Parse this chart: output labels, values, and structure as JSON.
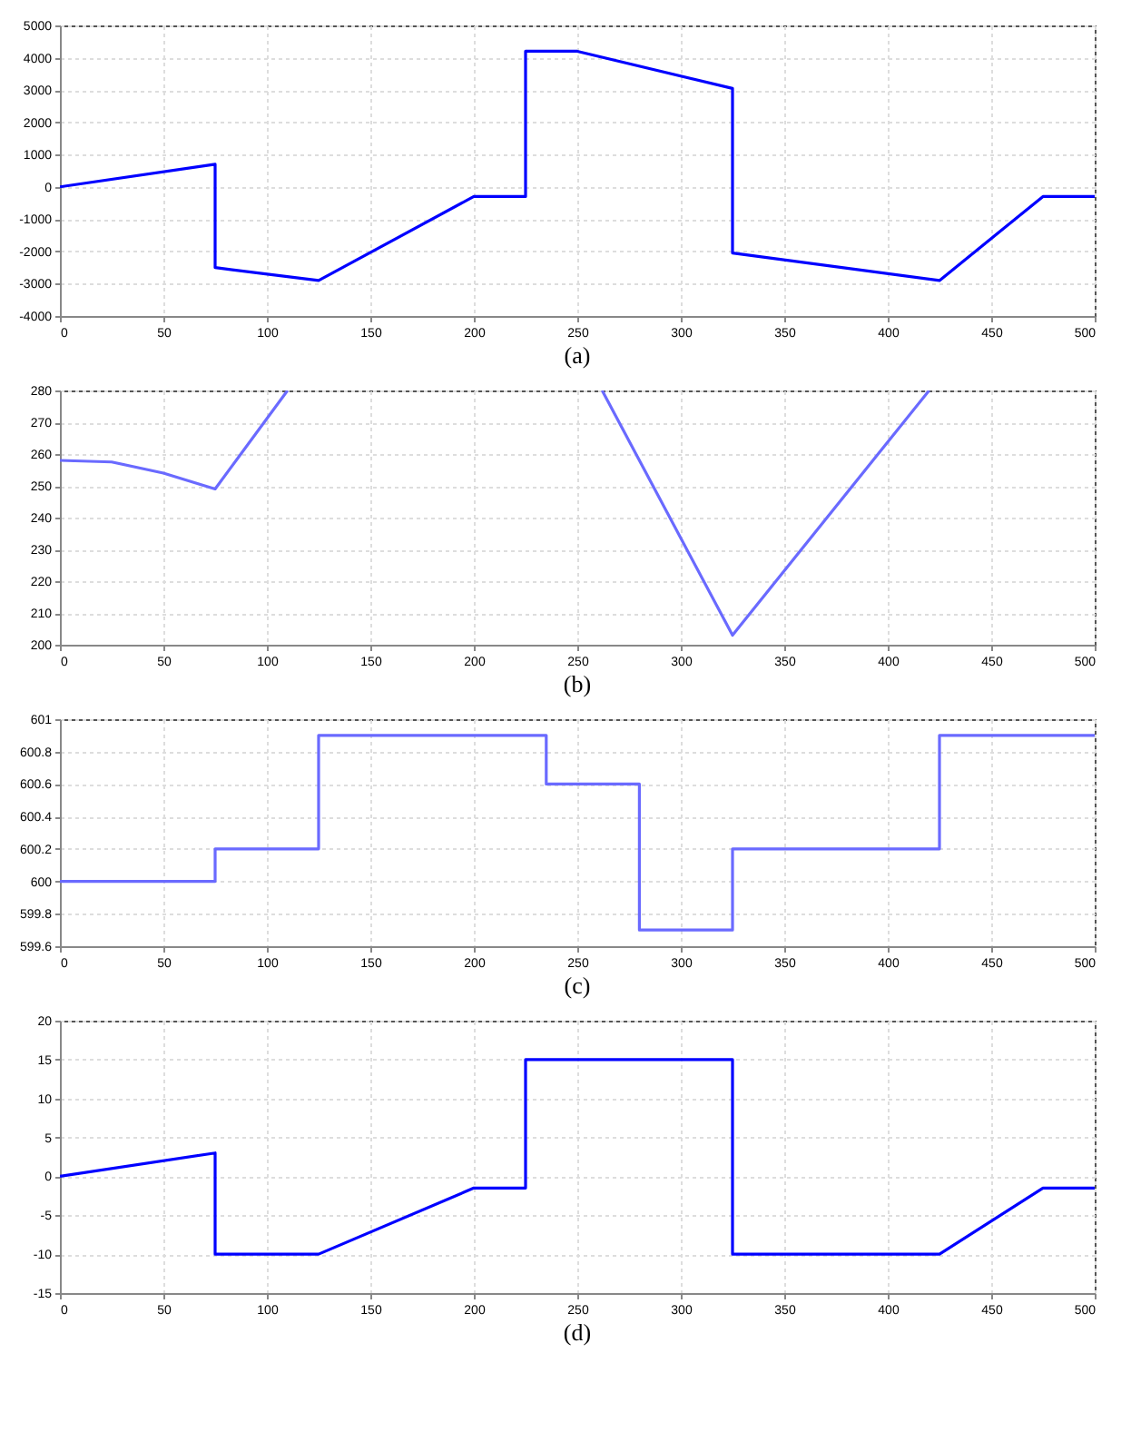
{
  "chart_data": [
    {
      "type": "line",
      "title": "(a)",
      "x": [
        0,
        75,
        75,
        125,
        200,
        225,
        225,
        250,
        325,
        325,
        425,
        475,
        500
      ],
      "values": [
        0,
        700,
        -2500,
        -2900,
        -300,
        -300,
        4200,
        4200,
        3050,
        -2050,
        -2900,
        -300,
        -300
      ],
      "color": "#0000ff",
      "xlim": [
        0,
        500
      ],
      "xticks": [
        0,
        50,
        100,
        150,
        200,
        250,
        300,
        350,
        400,
        450,
        500
      ],
      "ylim": [
        -4000,
        5000
      ],
      "yticks": [
        -4000,
        -3000,
        -2000,
        -1000,
        0,
        1000,
        2000,
        3000,
        4000,
        5000
      ],
      "grid": true
    },
    {
      "type": "line",
      "title": "(b)",
      "x": [
        0,
        25,
        50,
        75,
        110,
        186,
        262,
        325,
        420
      ],
      "values": [
        258,
        257.5,
        254,
        249,
        280,
        null,
        280,
        203,
        280
      ],
      "color": "#6a6aff",
      "xlim": [
        0,
        500
      ],
      "xticks": [
        0,
        50,
        100,
        150,
        200,
        250,
        300,
        350,
        400,
        450,
        500
      ],
      "ylim": [
        200,
        280
      ],
      "yticks": [
        200,
        210,
        220,
        230,
        240,
        250,
        260,
        270,
        280
      ],
      "grid": true
    },
    {
      "type": "step",
      "title": "(c)",
      "x": [
        0,
        75,
        125,
        235,
        280,
        325,
        425,
        500
      ],
      "values": [
        600,
        600.2,
        600.9,
        600.6,
        599.7,
        600.2,
        600.9,
        600.9
      ],
      "color": "#6a6aff",
      "xlim": [
        0,
        500
      ],
      "xticks": [
        0,
        50,
        100,
        150,
        200,
        250,
        300,
        350,
        400,
        450,
        500
      ],
      "ylim": [
        599.6,
        601
      ],
      "yticks": [
        599.6,
        599.8,
        600,
        600.2,
        600.4,
        600.6,
        600.8,
        601
      ],
      "grid": true
    },
    {
      "type": "line",
      "title": "(d)",
      "x": [
        0,
        75,
        75,
        125,
        200,
        225,
        225,
        325,
        325,
        425,
        475,
        500
      ],
      "values": [
        0,
        3,
        -10,
        -10,
        -1.5,
        -1.5,
        15,
        15,
        -10,
        -10,
        -1.5,
        -1.5
      ],
      "color": "#0000ff",
      "xlim": [
        0,
        500
      ],
      "xticks": [
        0,
        50,
        100,
        150,
        200,
        250,
        300,
        350,
        400,
        450,
        500
      ],
      "ylim": [
        -15,
        20
      ],
      "yticks": [
        -15,
        -10,
        -5,
        0,
        5,
        10,
        15,
        20
      ],
      "grid": true
    }
  ]
}
